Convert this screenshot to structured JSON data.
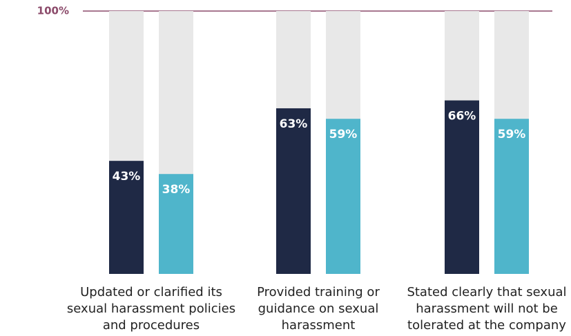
{
  "chart_data": {
    "type": "bar",
    "categories": [
      "Updated or clarified its sexual harassment policies and procedures",
      "Provided training or guidance on sexual harassment",
      "Stated clearly that sexual harassment will not be tolerated at the company"
    ],
    "series": [
      {
        "color": "#1f2945",
        "values": [
          43,
          63,
          66
        ],
        "value_labels": [
          "43%",
          "63%",
          "66%"
        ]
      },
      {
        "color": "#4fb5cb",
        "values": [
          38,
          59,
          59
        ],
        "value_labels": [
          "38%",
          "59%",
          "59%"
        ]
      }
    ],
    "ylim": [
      0,
      100
    ],
    "yticks": [
      {
        "value": 100,
        "label": "100%"
      }
    ],
    "grid": true
  }
}
